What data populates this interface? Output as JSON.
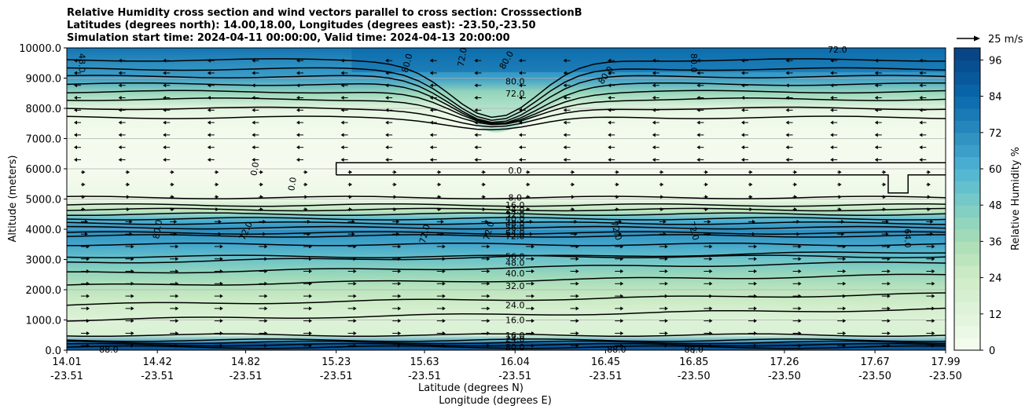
{
  "chart_data": {
    "type": "heatmap",
    "title_lines": [
      "Relative Humidity cross section and wind vectors parallel to cross section: CrosssectionB",
      "Latitudes (degrees north): 14.00,18.00, Longitudes (degrees east): -23.50,-23.50",
      "Simulation start time: 2024-04-11 00:00:00, Valid time: 2024-04-13 20:00:00"
    ],
    "xlabel_lat": "Latitude (degrees N)",
    "xlabel_lon": "Longitude (degrees E)",
    "ylabel": "Altitude (meters)",
    "ylim": [
      0,
      10000
    ],
    "y_ticks": [
      "0.0",
      "1000.0",
      "2000.0",
      "3000.0",
      "4000.0",
      "5000.0",
      "6000.0",
      "7000.0",
      "8000.0",
      "9000.0",
      "10000.0"
    ],
    "x_ticks": [
      {
        "lat": "14.01",
        "lon": "-23.51"
      },
      {
        "lat": "14.42",
        "lon": "-23.51"
      },
      {
        "lat": "14.82",
        "lon": "-23.51"
      },
      {
        "lat": "15.23",
        "lon": "-23.51"
      },
      {
        "lat": "15.63",
        "lon": "-23.51"
      },
      {
        "lat": "16.04",
        "lon": "-23.51"
      },
      {
        "lat": "16.45",
        "lon": "-23.51"
      },
      {
        "lat": "16.85",
        "lon": "-23.50"
      },
      {
        "lat": "17.26",
        "lon": "-23.50"
      },
      {
        "lat": "17.67",
        "lon": "-23.50"
      },
      {
        "lat": "17.99",
        "lon": "-23.50"
      }
    ],
    "colorbar": {
      "label": "Relative Humidity %",
      "ticks": [
        "0",
        "12",
        "24",
        "36",
        "48",
        "60",
        "72",
        "84",
        "96"
      ],
      "range": [
        0,
        100
      ]
    },
    "quiver_key": "25 m/s",
    "rh_profile": [
      {
        "alt": 0,
        "rh": 92
      },
      {
        "alt": 250,
        "rh": 70
      },
      {
        "alt": 500,
        "rh": 16
      },
      {
        "alt": 1000,
        "rh": 14
      },
      {
        "alt": 1500,
        "rh": 22
      },
      {
        "alt": 2000,
        "rh": 30
      },
      {
        "alt": 2500,
        "rh": 40
      },
      {
        "alt": 3000,
        "rh": 52
      },
      {
        "alt": 3500,
        "rh": 64
      },
      {
        "alt": 4000,
        "rh": 72
      },
      {
        "alt": 4300,
        "rh": 60
      },
      {
        "alt": 4600,
        "rh": 30
      },
      {
        "alt": 5000,
        "rh": 6
      },
      {
        "alt": 6000,
        "rh": 1
      },
      {
        "alt": 7000,
        "rh": 2
      },
      {
        "alt": 7600,
        "rh": 4
      },
      {
        "alt": 8000,
        "rh": 10
      },
      {
        "alt": 8500,
        "rh": 40
      },
      {
        "alt": 9000,
        "rh": 66
      },
      {
        "alt": 9500,
        "rh": 72
      },
      {
        "alt": 10000,
        "rh": 80
      }
    ],
    "contour_labels": [
      {
        "text": "0.0",
        "lat": 16.04,
        "alt": 5950
      },
      {
        "text": "0.0",
        "lat": 14.86,
        "alt": 6000,
        "rot": -80
      },
      {
        "text": "0.0",
        "lat": 15.03,
        "alt": 5500,
        "rot": -80
      },
      {
        "text": "8.0",
        "lat": 16.04,
        "alt": 5050
      },
      {
        "text": "16.0",
        "lat": 16.04,
        "alt": 4800
      },
      {
        "text": "24.0",
        "lat": 16.04,
        "alt": 4650
      },
      {
        "text": "32.0",
        "lat": 16.04,
        "alt": 4500
      },
      {
        "text": "40.0",
        "lat": 16.04,
        "alt": 4350
      },
      {
        "text": "48.0",
        "lat": 16.04,
        "alt": 4200
      },
      {
        "text": "56.0",
        "lat": 16.04,
        "alt": 4050
      },
      {
        "text": "64.0",
        "lat": 16.04,
        "alt": 3880
      },
      {
        "text": "72.0",
        "lat": 16.04,
        "alt": 3780
      },
      {
        "text": "80.0",
        "lat": 14.42,
        "alt": 4000,
        "rot": -80
      },
      {
        "text": "72.0",
        "lat": 14.82,
        "alt": 3950,
        "rot": -65
      },
      {
        "text": "72.0",
        "lat": 15.63,
        "alt": 3850,
        "rot": -75
      },
      {
        "text": "72.0",
        "lat": 15.92,
        "alt": 3950,
        "rot": -75
      },
      {
        "text": "72.0",
        "lat": 16.5,
        "alt": 3950,
        "rot": 75
      },
      {
        "text": "72.0",
        "lat": 16.85,
        "alt": 3950,
        "rot": 75
      },
      {
        "text": "64.0",
        "lat": 17.82,
        "alt": 3700,
        "rot": 90
      },
      {
        "text": "56.0",
        "lat": 16.04,
        "alt": 3100
      },
      {
        "text": "48.0",
        "lat": 16.04,
        "alt": 2900
      },
      {
        "text": "40.0",
        "lat": 16.04,
        "alt": 2550
      },
      {
        "text": "32.0",
        "lat": 16.04,
        "alt": 2130
      },
      {
        "text": "24.0",
        "lat": 16.04,
        "alt": 1500
      },
      {
        "text": "16.0",
        "lat": 16.04,
        "alt": 1000
      },
      {
        "text": "16.0",
        "lat": 16.04,
        "alt": 500
      },
      {
        "text": "24.0",
        "lat": 16.04,
        "alt": 380
      },
      {
        "text": "80.0",
        "lat": 16.04,
        "alt": 100
      },
      {
        "text": "48.0",
        "lat": 14.08,
        "alt": 9500,
        "rot": 90
      },
      {
        "text": "80.0",
        "lat": 15.55,
        "alt": 9500,
        "rot": -75
      },
      {
        "text": "72.0",
        "lat": 15.8,
        "alt": 9700,
        "rot": -80
      },
      {
        "text": "80.0",
        "lat": 16.0,
        "alt": 9600,
        "rot": -60
      },
      {
        "text": "80.0",
        "lat": 16.04,
        "alt": 8900
      },
      {
        "text": "72.0",
        "lat": 16.04,
        "alt": 8500
      },
      {
        "text": "80.0",
        "lat": 16.45,
        "alt": 9100,
        "rot": -55
      },
      {
        "text": "80.0",
        "lat": 16.85,
        "alt": 9500,
        "rot": 90
      },
      {
        "text": "72.0",
        "lat": 17.5,
        "alt": 9950
      },
      {
        "text": "88.0",
        "lat": 14.2,
        "alt": 30
      },
      {
        "text": "88.0",
        "lat": 16.5,
        "alt": 30
      },
      {
        "text": "88.0",
        "lat": 16.85,
        "alt": 30
      }
    ]
  }
}
